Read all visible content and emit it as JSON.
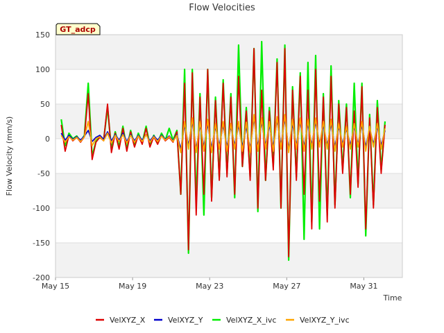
{
  "chart_data": {
    "type": "line",
    "title": "Flow Velocities",
    "xlabel": "Time",
    "ylabel": "Flow Velocity (mm/s)",
    "site_label": "GT_adcp",
    "xlim": [
      0,
      18
    ],
    "ylim": [
      -200,
      150
    ],
    "x_ticks": [
      0,
      4,
      8,
      12,
      16
    ],
    "x_tick_labels": [
      "May 15",
      "May 19",
      "May 23",
      "May 27",
      "May 31"
    ],
    "y_ticks": [
      -200,
      -150,
      -100,
      -50,
      0,
      50,
      100,
      150
    ],
    "y_tick_labels": [
      "-200",
      "-150",
      "-100",
      "-50",
      "0",
      "50",
      "100",
      "150"
    ],
    "legend_position": "bottom",
    "series": [
      {
        "name": "VelXYZ_X",
        "color": "#dd0000",
        "x": [
          0.3,
          0.5,
          0.7,
          0.9,
          1.1,
          1.3,
          1.5,
          1.7,
          1.9,
          2.1,
          2.3,
          2.5,
          2.7,
          2.9,
          3.1,
          3.3,
          3.5,
          3.7,
          3.9,
          4.1,
          4.3,
          4.5,
          4.7,
          4.9,
          5.1,
          5.3,
          5.5,
          5.7,
          5.9,
          6.1,
          6.3,
          6.5,
          6.7,
          6.9,
          7.1,
          7.3,
          7.5,
          7.7,
          7.9,
          8.1,
          8.3,
          8.5,
          8.7,
          8.9,
          9.1,
          9.3,
          9.5,
          9.7,
          9.9,
          10.1,
          10.3,
          10.5,
          10.7,
          10.9,
          11.1,
          11.3,
          11.5,
          11.7,
          11.9,
          12.1,
          12.3,
          12.5,
          12.7,
          12.9,
          13.1,
          13.3,
          13.5,
          13.7,
          13.9,
          14.1,
          14.3,
          14.5,
          14.7,
          14.9,
          15.1,
          15.3,
          15.5,
          15.7,
          15.9,
          16.1,
          16.3,
          16.5,
          16.7,
          16.9,
          17.1
        ],
        "values": [
          20,
          -18,
          5,
          -3,
          2,
          -5,
          3,
          65,
          -30,
          -5,
          2,
          -3,
          50,
          -20,
          8,
          -15,
          15,
          -18,
          10,
          -12,
          5,
          -8,
          15,
          -12,
          3,
          -8,
          5,
          -3,
          2,
          -5,
          10,
          -80,
          80,
          -160,
          95,
          -110,
          60,
          -80,
          100,
          -90,
          55,
          -60,
          80,
          -55,
          60,
          -80,
          90,
          -40,
          40,
          -60,
          130,
          -100,
          70,
          -60,
          40,
          -45,
          110,
          -100,
          130,
          -170,
          70,
          -60,
          90,
          -80,
          70,
          -130,
          100,
          -90,
          60,
          -120,
          90,
          -100,
          50,
          -50,
          45,
          -80,
          40,
          -70,
          75,
          -130,
          30,
          -100,
          45,
          -50,
          20
        ]
      },
      {
        "name": "VelXYZ_Y",
        "color": "#0000cc",
        "x": [
          0.3,
          0.5,
          0.7,
          0.9,
          1.1,
          1.3,
          1.5,
          1.7,
          1.9,
          2.1,
          2.3,
          2.5,
          2.7,
          2.9,
          3.1,
          3.3,
          3.5,
          3.7,
          3.9,
          4.1,
          4.3,
          4.5,
          4.7,
          4.9,
          5.1,
          5.3,
          5.5,
          5.7,
          5.9,
          6.1,
          6.3,
          6.5,
          6.7,
          6.9,
          7.1,
          7.3,
          7.5,
          7.7,
          7.9,
          8.1,
          8.3,
          8.5,
          8.7,
          8.9,
          9.1,
          9.3,
          9.5,
          9.7,
          9.9,
          10.1,
          10.3,
          10.5,
          10.7,
          10.9,
          11.1,
          11.3,
          11.5,
          11.7,
          11.9,
          12.1,
          12.3,
          12.5,
          12.7,
          12.9,
          13.1,
          13.3,
          13.5,
          13.7,
          13.9,
          14.1,
          14.3,
          14.5,
          14.7,
          14.9,
          15.1,
          15.3,
          15.5,
          15.7,
          15.9,
          16.1,
          16.3,
          16.5,
          16.7,
          16.9,
          17.1
        ],
        "values": [
          8,
          -2,
          5,
          -1,
          3,
          -2,
          4,
          12,
          -4,
          2,
          5,
          -1,
          10,
          -3,
          6,
          -2,
          8,
          -4,
          6,
          -3,
          5,
          -2,
          6,
          -3,
          4,
          -2,
          5,
          -1,
          4,
          -3,
          6,
          -15,
          20,
          -10,
          25,
          -15,
          20,
          -12,
          22,
          -14,
          18,
          -10,
          20,
          -12,
          18,
          -10,
          20,
          -12,
          18,
          -15,
          30,
          -12,
          25,
          -10,
          20,
          -12,
          28,
          -10,
          30,
          -15,
          22,
          -10,
          25,
          -12,
          22,
          -10,
          25,
          -8,
          20,
          -10,
          22,
          -12,
          18,
          -8,
          15,
          -10,
          18,
          -8,
          20,
          -12,
          15,
          -8,
          18,
          -10,
          12
        ]
      },
      {
        "name": "VelXYZ_X_ivc",
        "color": "#00ee00",
        "x": [
          0.3,
          0.5,
          0.7,
          0.9,
          1.1,
          1.3,
          1.5,
          1.7,
          1.9,
          2.1,
          2.3,
          2.5,
          2.7,
          2.9,
          3.1,
          3.3,
          3.5,
          3.7,
          3.9,
          4.1,
          4.3,
          4.5,
          4.7,
          4.9,
          5.1,
          5.3,
          5.5,
          5.7,
          5.9,
          6.1,
          6.3,
          6.5,
          6.7,
          6.9,
          7.1,
          7.3,
          7.5,
          7.7,
          7.9,
          8.1,
          8.3,
          8.5,
          8.7,
          8.9,
          9.1,
          9.3,
          9.5,
          9.7,
          9.9,
          10.1,
          10.3,
          10.5,
          10.7,
          10.9,
          11.1,
          11.3,
          11.5,
          11.7,
          11.9,
          12.1,
          12.3,
          12.5,
          12.7,
          12.9,
          13.1,
          13.3,
          13.5,
          13.7,
          13.9,
          14.1,
          14.3,
          14.5,
          14.7,
          14.9,
          15.1,
          15.3,
          15.5,
          15.7,
          15.9,
          16.1,
          16.3,
          16.5,
          16.7,
          16.9,
          17.1
        ],
        "values": [
          28,
          -10,
          8,
          0,
          4,
          -4,
          5,
          80,
          -25,
          -4,
          4,
          -2,
          45,
          -15,
          10,
          -12,
          18,
          -15,
          12,
          -10,
          8,
          -6,
          18,
          -10,
          5,
          -6,
          8,
          -2,
          15,
          -2,
          12,
          -80,
          100,
          -165,
          100,
          -90,
          65,
          -110,
          100,
          -85,
          60,
          -55,
          85,
          -50,
          65,
          -85,
          135,
          -40,
          45,
          -55,
          130,
          -105,
          140,
          -60,
          45,
          -40,
          115,
          -100,
          135,
          -175,
          75,
          -55,
          95,
          -145,
          110,
          -120,
          120,
          -130,
          65,
          -110,
          105,
          -95,
          55,
          -45,
          50,
          -85,
          80,
          -65,
          80,
          -140,
          35,
          -95,
          55,
          -45,
          25
        ]
      },
      {
        "name": "VelXYZ_Y_ivc",
        "color": "#ffa500",
        "x": [
          0.3,
          0.5,
          0.7,
          0.9,
          1.1,
          1.3,
          1.5,
          1.7,
          1.9,
          2.1,
          2.3,
          2.5,
          2.7,
          2.9,
          3.1,
          3.3,
          3.5,
          3.7,
          3.9,
          4.1,
          4.3,
          4.5,
          4.7,
          4.9,
          5.1,
          5.3,
          5.5,
          5.7,
          5.9,
          6.1,
          6.3,
          6.5,
          6.7,
          6.9,
          7.1,
          7.3,
          7.5,
          7.7,
          7.9,
          8.1,
          8.3,
          8.5,
          8.7,
          8.9,
          9.1,
          9.3,
          9.5,
          9.7,
          9.9,
          10.1,
          10.3,
          10.5,
          10.7,
          10.9,
          11.1,
          11.3,
          11.5,
          11.7,
          11.9,
          12.1,
          12.3,
          12.5,
          12.7,
          12.9,
          13.1,
          13.3,
          13.5,
          13.7,
          13.9,
          14.1,
          14.3,
          14.5,
          14.7,
          14.9,
          15.1,
          15.3,
          15.5,
          15.7,
          15.9,
          16.1,
          16.3,
          16.5,
          16.7,
          16.9,
          17.1
        ],
        "values": [
          5,
          -5,
          3,
          -2,
          2,
          -4,
          3,
          25,
          -10,
          0,
          3,
          -3,
          8,
          -6,
          5,
          -4,
          6,
          -6,
          5,
          -5,
          4,
          -4,
          6,
          -5,
          3,
          -4,
          4,
          -2,
          3,
          -4,
          5,
          -20,
          25,
          -15,
          30,
          -20,
          25,
          -18,
          28,
          -20,
          22,
          -15,
          25,
          -18,
          22,
          -15,
          25,
          -18,
          24,
          -20,
          35,
          -18,
          30,
          -15,
          25,
          -18,
          32,
          -15,
          35,
          -20,
          28,
          -15,
          30,
          -18,
          28,
          -15,
          30,
          -12,
          25,
          -15,
          28,
          -18,
          22,
          -12,
          18,
          -15,
          22,
          -12,
          25,
          -18,
          18,
          -12,
          22,
          -15,
          15
        ]
      }
    ]
  }
}
